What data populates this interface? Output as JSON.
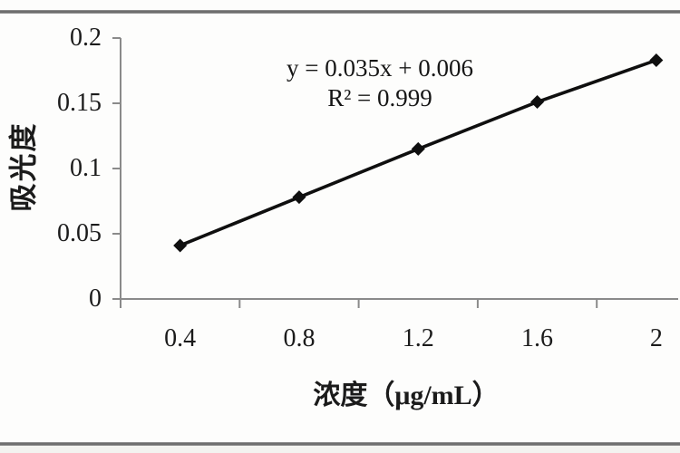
{
  "frame": {
    "top_rule_color": "#6f6f6f",
    "bottom_rule_color": "#6f6f6f",
    "background": "#fdfdfc"
  },
  "chart_data": {
    "type": "line",
    "title": "",
    "categories": [
      "0.4",
      "0.8",
      "1.2",
      "1.6",
      "2"
    ],
    "values": [
      0.041,
      0.078,
      0.115,
      0.151,
      0.183
    ],
    "xlabel": "浓度（μg/mL）",
    "ylabel": "吸光度",
    "ylim": [
      0,
      0.2
    ],
    "yticks": [
      0,
      0.05,
      0.1,
      0.15,
      0.2
    ],
    "ytick_labels": [
      "0",
      "0.05",
      "0.1",
      "0.15",
      "0.2"
    ],
    "annotation": {
      "line1": "y = 0.035x + 0.006",
      "line2": "R² = 0.999"
    },
    "marker": "diamond",
    "line_color": "#0f0f0f",
    "marker_color": "#0f0f0f",
    "axis_color": "#8a8a8a",
    "grid": false,
    "legend": false,
    "x_axis_type": "category"
  }
}
